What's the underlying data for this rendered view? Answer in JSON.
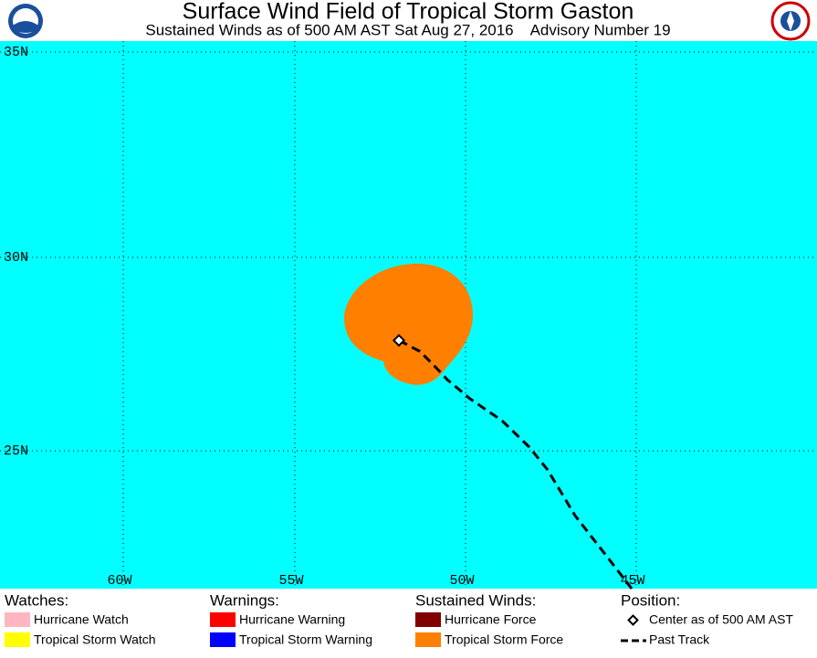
{
  "header": {
    "title": "Surface Wind Field of Tropical Storm Gaston",
    "subtitle": "Sustained Winds as of 500 AM AST Sat Aug 27, 2016    Advisory Number 19"
  },
  "map": {
    "lat_labels": [
      "35N",
      "30N",
      "25N"
    ],
    "lon_labels": [
      "60W",
      "55W",
      "50W",
      "45W"
    ]
  },
  "legend": {
    "watches": {
      "title": "Watches:",
      "items": [
        "Hurricane Watch",
        "Tropical Storm Watch"
      ]
    },
    "warnings": {
      "title": "Warnings:",
      "items": [
        "Hurricane Warning",
        "Tropical Storm Warning"
      ]
    },
    "winds": {
      "title": "Sustained Winds:",
      "items": [
        "Hurricane Force",
        "Tropical Storm Force"
      ]
    },
    "position": {
      "title": "Position:",
      "items": [
        "Center as of 500 AM AST",
        "Past Track"
      ]
    }
  }
}
